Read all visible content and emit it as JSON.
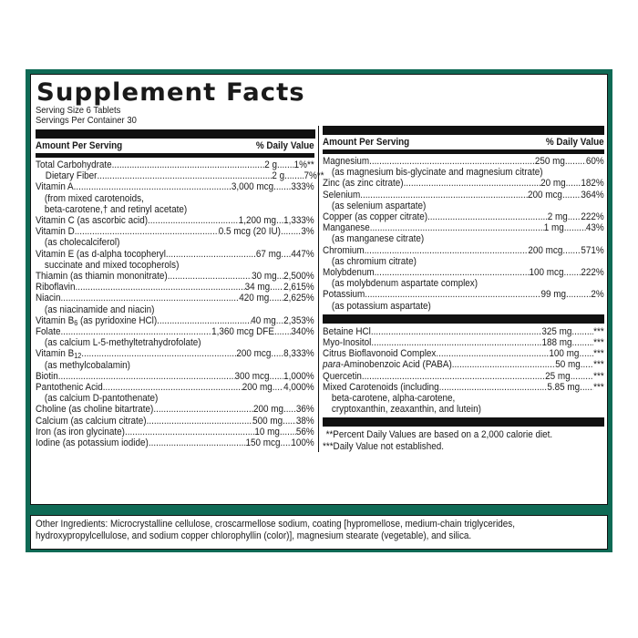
{
  "label": {
    "title": "Supplement Facts",
    "serving_size": "Serving Size 6 Tablets",
    "servings_per_container": "Servings Per Container 30",
    "col_header_amount": "Amount Per Serving",
    "col_header_dv": "% Daily Value",
    "frame_color": "#0f6a55"
  },
  "left_column": [
    {
      "name": "Total Carbohydrate",
      "amount": "2 g",
      "dv": "1%**"
    },
    {
      "name": "Dietary Fiber",
      "amount": "2 g",
      "dv": "7%**",
      "indent": true
    },
    {
      "name": "Vitamin A",
      "amount": "3,000 mcg",
      "dv": "333%",
      "note": [
        "(from mixed carotenoids,",
        "beta-carotene,† and retinyl acetate)"
      ]
    },
    {
      "name": "Vitamin C (as ascorbic acid)",
      "amount": "1,200 mg",
      "dv": "1,333%"
    },
    {
      "name": "Vitamin D",
      "amount": "0.5 mcg (20 IU)",
      "dv": "3%",
      "note": [
        "(as cholecalciferol)"
      ]
    },
    {
      "name": "Vitamin E (as d-alpha tocopheryl",
      "amount": "67 mg",
      "dv": "447%",
      "note": [
        "succinate and mixed tocopherols)"
      ]
    },
    {
      "name": "Thiamin (as thiamin mononitrate)",
      "amount": "30 mg",
      "dv": "2,500%"
    },
    {
      "name": "Riboflavin",
      "amount": "34 mg",
      "dv": "2,615%"
    },
    {
      "name": "Niacin",
      "amount": "420 mg",
      "dv": "2,625%",
      "note": [
        "(as niacinamide and niacin)"
      ]
    },
    {
      "name": "Vitamin B6 (as pyridoxine HCl)",
      "amount": "40 mg",
      "dv": "2,353%"
    },
    {
      "name": "Folate",
      "amount": "1,360 mcg DFE",
      "dv": "340%",
      "note": [
        "(as calcium L-5-methyltetrahydrofolate)"
      ]
    },
    {
      "name": "Vitamin B12",
      "amount": "200 mcg",
      "dv": "8,333%",
      "note": [
        "(as methylcobalamin)"
      ]
    },
    {
      "name": "Biotin",
      "amount": "300 mcg",
      "dv": "1,000%"
    },
    {
      "name": "Pantothenic Acid",
      "amount": "200 mg",
      "dv": "4,000%",
      "note": [
        "(as calcium D-pantothenate)"
      ]
    },
    {
      "name": "Choline (as choline bitartrate)",
      "amount": "200 mg",
      "dv": "36%"
    },
    {
      "name": "Calcium (as calcium citrate)",
      "amount": "500 mg",
      "dv": "38%"
    },
    {
      "name": "Iron (as iron glycinate)",
      "amount": "10 mg",
      "dv": "56%"
    },
    {
      "name": "Iodine (as potassium iodide)",
      "amount": "150 mcg",
      "dv": "100%"
    }
  ],
  "right_column": [
    {
      "name": "Magnesium",
      "amount": "250 mg",
      "dv": "60%",
      "note": [
        "(as magnesium bis-glycinate and magnesium citrate)"
      ]
    },
    {
      "name": "Zinc (as zinc citrate)",
      "amount": "20 mg",
      "dv": "182%"
    },
    {
      "name": "Selenium",
      "amount": "200 mcg",
      "dv": "364%",
      "note": [
        "(as selenium aspartate)"
      ]
    },
    {
      "name": "Copper (as copper citrate)",
      "amount": "2 mg",
      "dv": "222%"
    },
    {
      "name": "Manganese",
      "amount": "1 mg",
      "dv": "43%",
      "note": [
        "(as manganese citrate)"
      ]
    },
    {
      "name": "Chromium",
      "amount": "200 mcg",
      "dv": "571%",
      "note": [
        "(as chromium citrate)"
      ]
    },
    {
      "name": "Molybdenum",
      "amount": "100 mcg",
      "dv": "222%",
      "note": [
        "(as molybdenum aspartate complex)"
      ]
    },
    {
      "name": "Potassium",
      "amount": "99 mg",
      "dv": "2%",
      "note": [
        "(as potassium aspartate)"
      ]
    }
  ],
  "right_column_other": [
    {
      "name": "Betaine HCl",
      "amount": "325 mg",
      "dv": "***"
    },
    {
      "name": "Myo-Inositol",
      "amount": "188 mg",
      "dv": "***"
    },
    {
      "name": "Citrus Bioflavonoid Complex",
      "amount": "100 mg",
      "dv": "***"
    },
    {
      "name": "para-Aminobenzoic Acid (PABA)",
      "amount": "50 mg",
      "dv": "***"
    },
    {
      "name": "Quercetin",
      "amount": "25 mg",
      "dv": "***"
    },
    {
      "name": "Mixed Carotenoids (including",
      "amount": "5.85 mg",
      "dv": "***",
      "note": [
        "beta-carotene, alpha-carotene,",
        "cryptoxanthin, zeaxanthin, and lutein)"
      ]
    }
  ],
  "footnotes": {
    "percent_dv": "**Percent Daily Values are based on a 2,000 calorie diet.",
    "not_established": "***Daily Value not established."
  },
  "other_ingredients": {
    "line1": "Other Ingredients: Microcrystalline cellulose, croscarmellose sodium, coating [hypromellose, medium-chain triglycerides,",
    "line2": "hydroxypropylcellulose, and sodium copper chlorophyllin (color)], magnesium stearate (vegetable), and silica."
  }
}
